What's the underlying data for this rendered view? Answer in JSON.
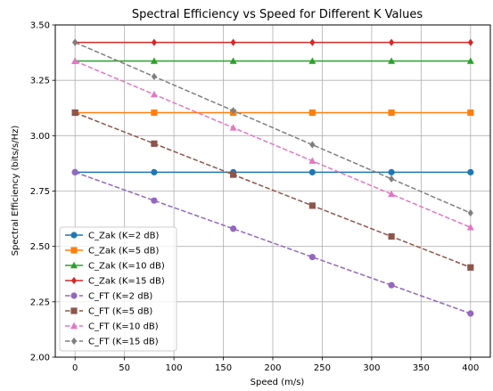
{
  "chart_data": {
    "type": "line",
    "title": "Spectral Efficiency vs Speed for Different K Values",
    "xlabel": "Speed (m/s)",
    "ylabel": "Spectral Efficiency (bits/s/Hz)",
    "xlim": [
      -20,
      420
    ],
    "ylim": [
      2.0,
      3.5
    ],
    "xticks": [
      0,
      50,
      100,
      150,
      200,
      250,
      300,
      350,
      400
    ],
    "xtick_labels": [
      "0",
      "50",
      "100",
      "150",
      "200",
      "250",
      "300",
      "350",
      "400"
    ],
    "yticks": [
      2.0,
      2.25,
      2.5,
      2.75,
      3.0,
      3.25,
      3.5
    ],
    "ytick_labels": [
      "2.00",
      "2.25",
      "2.50",
      "2.75",
      "3.00",
      "3.25",
      "3.50"
    ],
    "grid": true,
    "legend_position": "lower-left",
    "x": [
      0,
      80,
      160,
      240,
      320,
      400
    ],
    "series": [
      {
        "name": "C_Zak (K=2 dB)",
        "values": [
          2.835,
          2.835,
          2.835,
          2.835,
          2.835,
          2.835
        ],
        "color": "#1f77b4",
        "marker": "circle",
        "dashed": false
      },
      {
        "name": "C_Zak (K=5 dB)",
        "values": [
          3.104,
          3.104,
          3.104,
          3.104,
          3.104,
          3.104
        ],
        "color": "#ff7f0e",
        "marker": "square",
        "dashed": false
      },
      {
        "name": "C_Zak (K=10 dB)",
        "values": [
          3.337,
          3.337,
          3.337,
          3.337,
          3.337,
          3.337
        ],
        "color": "#2ca02c",
        "marker": "triangle",
        "dashed": false
      },
      {
        "name": "C_Zak (K=15 dB)",
        "values": [
          3.421,
          3.421,
          3.421,
          3.421,
          3.421,
          3.421
        ],
        "color": "#d62728",
        "marker": "diamond",
        "dashed": false
      },
      {
        "name": "C_FT (K=2 dB)",
        "values": [
          2.835,
          2.707,
          2.58,
          2.452,
          2.325,
          2.197
        ],
        "color": "#9467bd",
        "marker": "circle",
        "dashed": true
      },
      {
        "name": "C_FT (K=5 dB)",
        "values": [
          3.104,
          2.964,
          2.824,
          2.684,
          2.545,
          2.405
        ],
        "color": "#8c564b",
        "marker": "square",
        "dashed": true
      },
      {
        "name": "C_FT (K=10 dB)",
        "values": [
          3.337,
          3.186,
          3.036,
          2.886,
          2.736,
          2.586
        ],
        "color": "#e377c2",
        "marker": "triangle",
        "dashed": true
      },
      {
        "name": "C_FT (K=15 dB)",
        "values": [
          3.421,
          3.267,
          3.113,
          2.959,
          2.805,
          2.651
        ],
        "color": "#7f7f7f",
        "marker": "diamond",
        "dashed": true
      }
    ]
  }
}
